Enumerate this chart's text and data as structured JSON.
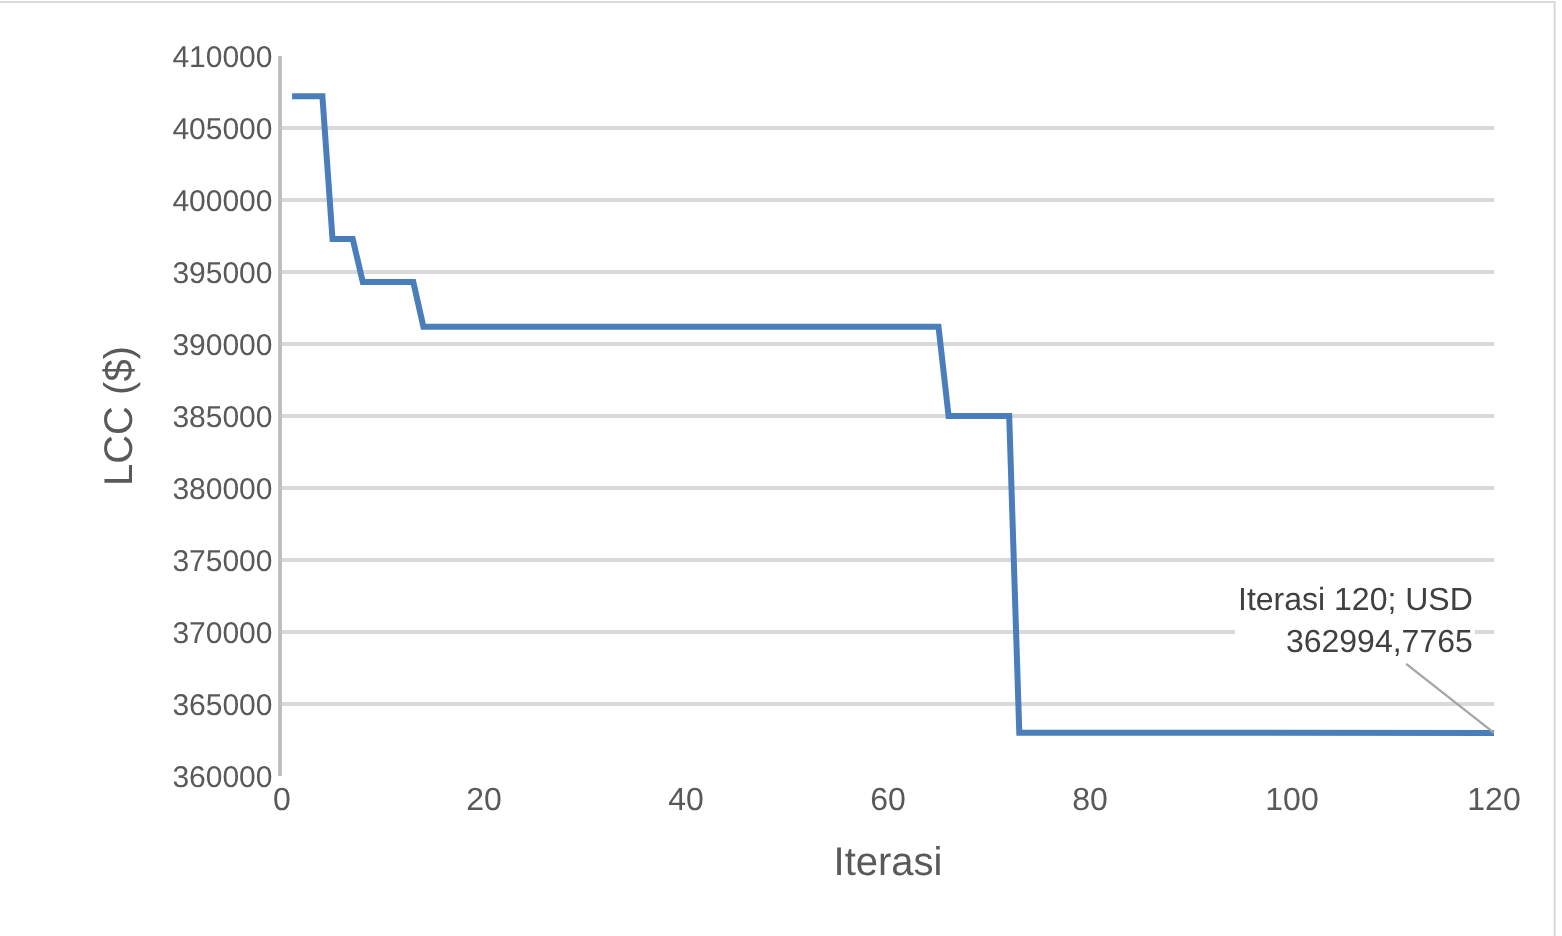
{
  "chart_data": {
    "type": "line",
    "xlabel": "Iterasi",
    "ylabel": "LCC ($)",
    "x": [
      1,
      4,
      5,
      7,
      8,
      13,
      14,
      65,
      66,
      72,
      73,
      120
    ],
    "series": [
      {
        "color": "#4a7ebb",
        "values": [
          407200,
          407200,
          397300,
          397300,
          394300,
          394300,
          391200,
          391200,
          385000,
          385000,
          363000,
          362994.7765
        ]
      }
    ],
    "xlim": [
      0,
      120
    ],
    "xticks": [
      0,
      20,
      40,
      60,
      80,
      100,
      120
    ],
    "ylim": [
      360000,
      410000
    ],
    "yticks": [
      360000,
      365000,
      370000,
      375000,
      380000,
      385000,
      390000,
      395000,
      400000,
      405000,
      410000
    ],
    "grid": "y",
    "marker": "none",
    "line_style": "solid",
    "annotations": [
      {
        "text": "Iterasi 120; USD\n362994,7765",
        "x": 120,
        "y": 362994.7765
      }
    ]
  }
}
